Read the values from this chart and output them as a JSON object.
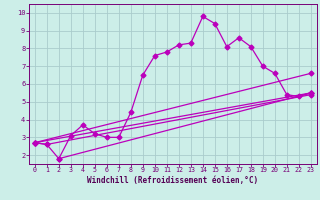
{
  "xlabel": "Windchill (Refroidissement éolien,°C)",
  "background_color": "#cceee8",
  "grid_color": "#aacccc",
  "line_color": "#bb00bb",
  "xlim": [
    -0.5,
    23.5
  ],
  "ylim": [
    1.5,
    10.5
  ],
  "yticks": [
    2,
    3,
    4,
    5,
    6,
    7,
    8,
    9,
    10
  ],
  "xticks": [
    0,
    1,
    2,
    3,
    4,
    5,
    6,
    7,
    8,
    9,
    10,
    11,
    12,
    13,
    14,
    15,
    16,
    17,
    18,
    19,
    20,
    21,
    22,
    23
  ],
  "line1_x": [
    0,
    1,
    2,
    3,
    4,
    5,
    6,
    7,
    8,
    9,
    10,
    11,
    12,
    13,
    14,
    15,
    16,
    17,
    18,
    19,
    20,
    21,
    22,
    23
  ],
  "line1_y": [
    2.7,
    2.6,
    1.8,
    3.1,
    3.7,
    3.2,
    3.0,
    3.0,
    4.4,
    6.5,
    7.6,
    7.8,
    8.2,
    8.3,
    9.8,
    9.4,
    8.1,
    8.6,
    8.1,
    7.0,
    6.6,
    5.4,
    5.3,
    5.5
  ],
  "line2_x": [
    0,
    1,
    23
  ],
  "line2_y": [
    2.7,
    2.6,
    5.4
  ],
  "line3_x": [
    0,
    23
  ],
  "line3_y": [
    2.7,
    5.5
  ],
  "line4_x": [
    0,
    23
  ],
  "line4_y": [
    2.7,
    6.6
  ],
  "line5_x": [
    2,
    23
  ],
  "line5_y": [
    1.8,
    5.5
  ],
  "spine_color": "#770077",
  "tick_color": "#770077",
  "xlabel_color": "#550055",
  "xlabel_fontsize": 5.5,
  "tick_fontsize": 4.8,
  "marker_size": 2.5
}
